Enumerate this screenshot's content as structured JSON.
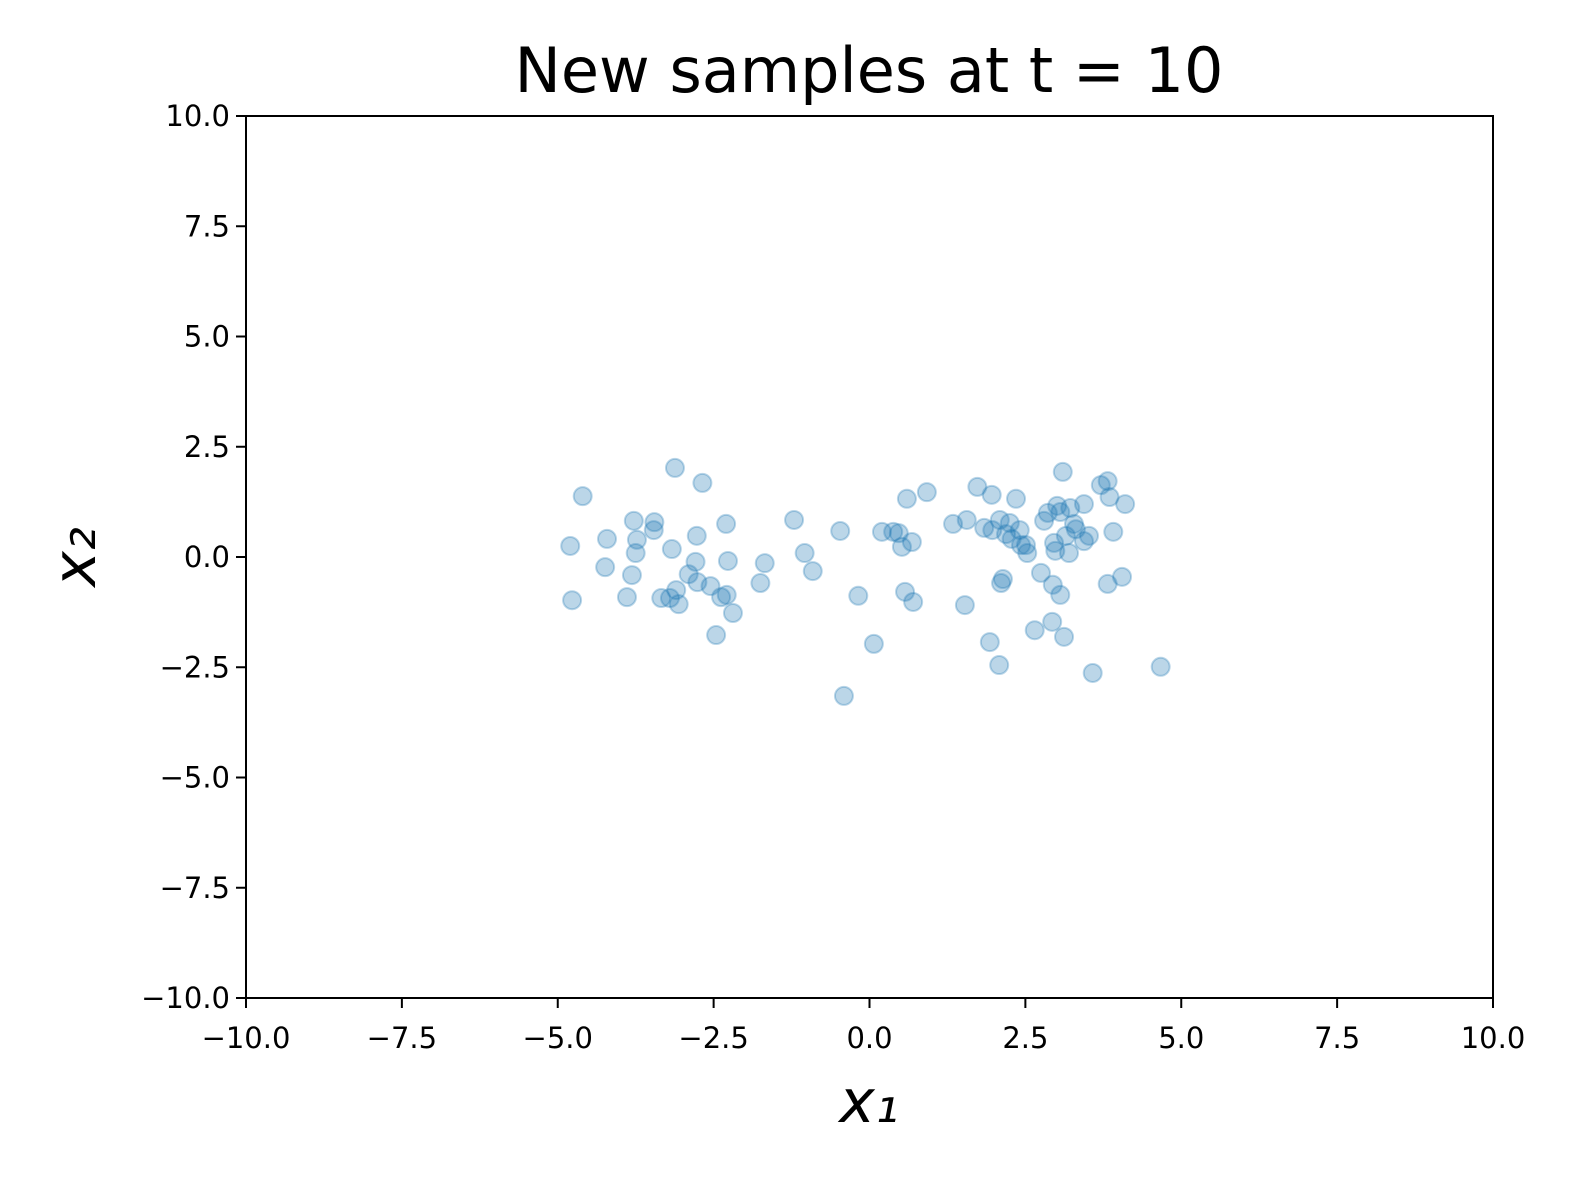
{
  "chart_data": {
    "type": "scatter",
    "title": "New samples at t = 10",
    "x_label": "x₁",
    "y_label": "x₂",
    "color": "#1f77b4",
    "alpha": 0.3,
    "xlim": [
      -10,
      10
    ],
    "ylim": [
      -10,
      10
    ],
    "xticks": [
      {
        "value": -10,
        "label": "−10.0"
      },
      {
        "value": -7.5,
        "label": "−7.5"
      },
      {
        "value": -5,
        "label": "−5.0"
      },
      {
        "value": -2.5,
        "label": "−2.5"
      },
      {
        "value": 0,
        "label": "0.0"
      },
      {
        "value": 2.5,
        "label": "2.5"
      },
      {
        "value": 5,
        "label": "5.0"
      },
      {
        "value": 7.5,
        "label": "7.5"
      },
      {
        "value": 10,
        "label": "10.0"
      }
    ],
    "yticks": [
      {
        "value": -10,
        "label": "−10.0"
      },
      {
        "value": -7.5,
        "label": "−7.5"
      },
      {
        "value": -5,
        "label": "−5.0"
      },
      {
        "value": -2.5,
        "label": "−2.5"
      },
      {
        "value": 0,
        "label": "0.0"
      },
      {
        "value": 2.5,
        "label": "2.5"
      },
      {
        "value": 5,
        "label": "5.0"
      },
      {
        "value": 7.5,
        "label": "7.5"
      },
      {
        "value": 10,
        "label": "10.0"
      }
    ],
    "x": [
      -4.8,
      -4.77,
      -4.6,
      -4.21,
      -4.24,
      -3.89,
      -3.81,
      -3.78,
      -3.75,
      -3.73,
      -3.45,
      -3.46,
      -3.34,
      -3.17,
      -3.12,
      -3.2,
      -3.1,
      -3.06,
      -2.9,
      -2.77,
      -2.79,
      -2.76,
      -2.68,
      -2.55,
      -2.46,
      -2.38,
      -2.3,
      -2.27,
      -2.29,
      -2.19,
      -1.75,
      -1.68,
      -1.21,
      -1.04,
      -0.91,
      -0.47,
      -0.18,
      0.07,
      -0.41,
      0.2,
      0.38,
      0.47,
      0.52,
      0.6,
      0.57,
      0.68,
      0.7,
      0.92,
      1.34,
      1.53,
      1.56,
      1.73,
      1.84,
      1.93,
      1.96,
      1.97,
      2.08,
      2.09,
      2.11,
      2.14,
      2.19,
      2.25,
      2.28,
      2.35,
      2.41,
      2.43,
      2.53,
      2.65,
      2.75,
      2.8,
      2.86,
      2.93,
      2.94,
      2.96,
      2.98,
      3.01,
      3.06,
      3.06,
      3.1,
      3.12,
      3.15,
      3.2,
      3.22,
      3.28,
      3.31,
      3.44,
      3.44,
      3.52,
      3.58,
      3.71,
      3.82,
      3.82,
      3.85,
      3.91,
      4.05,
      4.1,
      4.67,
      2.51
    ],
    "values": [
      0.25,
      -0.98,
      1.38,
      0.41,
      -0.23,
      -0.91,
      -0.41,
      0.82,
      0.09,
      0.39,
      0.79,
      0.61,
      -0.93,
      0.18,
      2.02,
      -0.93,
      -0.75,
      -1.07,
      -0.39,
      0.48,
      -0.11,
      -0.57,
      1.68,
      -0.66,
      -1.77,
      -0.91,
      0.75,
      -0.09,
      -0.86,
      -1.27,
      -0.59,
      -0.14,
      0.84,
      0.09,
      -0.32,
      0.59,
      -0.88,
      -1.97,
      -3.15,
      0.57,
      0.57,
      0.54,
      0.23,
      1.32,
      -0.79,
      0.34,
      -1.02,
      1.47,
      0.75,
      -1.09,
      0.84,
      1.59,
      0.66,
      -1.93,
      1.41,
      0.61,
      -2.45,
      0.84,
      -0.59,
      -0.5,
      0.52,
      0.77,
      0.41,
      1.32,
      0.61,
      0.27,
      0.09,
      -1.66,
      -0.36,
      0.82,
      1.0,
      -1.47,
      -0.63,
      0.32,
      0.14,
      1.16,
      1.02,
      -0.86,
      1.93,
      -1.81,
      0.48,
      0.09,
      1.11,
      0.75,
      0.63,
      1.2,
      0.36,
      0.48,
      -2.63,
      1.63,
      1.72,
      -0.61,
      1.36,
      0.57,
      -0.45,
      1.2,
      -2.49,
      0.27
    ]
  }
}
